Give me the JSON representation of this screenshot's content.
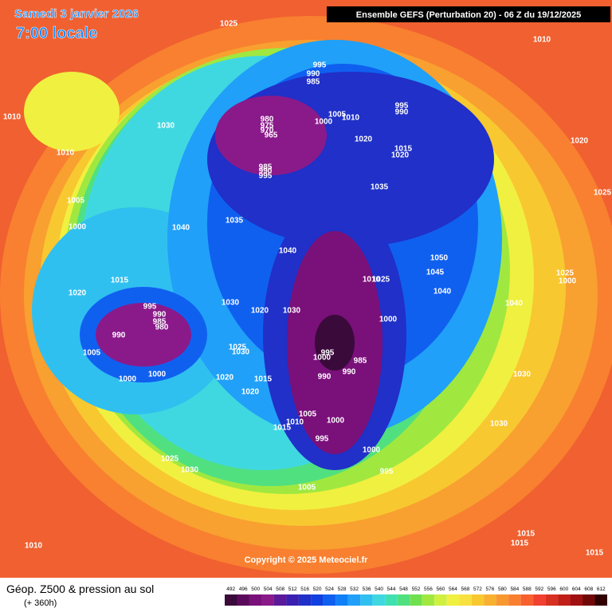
{
  "header": {
    "date": "Samedi 3 janvier 2026",
    "time": "7:00 locale",
    "run": "Ensemble GEFS  (Perturbation 20)  -  06 Z du 19/12/2025"
  },
  "copyright": "Copyright © 2025 Meteociel.fr",
  "footer": {
    "title": "Géop. Z500 & pression au sol",
    "range": "(+ 360h)"
  },
  "legend": {
    "values": [
      492,
      496,
      500,
      504,
      508,
      512,
      516,
      520,
      524,
      528,
      532,
      536,
      540,
      544,
      548,
      552,
      556,
      560,
      564,
      568,
      572,
      576,
      580,
      584,
      588,
      592,
      596,
      600,
      604,
      608,
      612
    ],
    "colors": [
      "#3a0a3a",
      "#5a0a5a",
      "#7a107a",
      "#8a1a8a",
      "#5a1a9a",
      "#3a20b0",
      "#2030c8",
      "#1040e0",
      "#1060f0",
      "#1080f8",
      "#20a0f8",
      "#30c0f0",
      "#40d8e0",
      "#40e0b0",
      "#50e080",
      "#70e050",
      "#a0e840",
      "#d0f040",
      "#f0f040",
      "#f8e040",
      "#f8c830",
      "#f8b030",
      "#f89830",
      "#f88030",
      "#f86030",
      "#f04030",
      "#d83020",
      "#c02018",
      "#a01010",
      "#700808",
      "#300000"
    ]
  },
  "isobars": [
    1025,
    1010,
    1030,
    1010,
    1010,
    1005,
    1000,
    1015,
    1020,
    995,
    990,
    985,
    980,
    990,
    1005,
    1000,
    1000,
    1020,
    1015,
    1020,
    1025,
    1030,
    1030,
    1020,
    1030,
    1040,
    1035,
    1040,
    1035,
    1015,
    1020,
    1020,
    1010,
    1005,
    1000,
    995,
    990,
    995,
    990,
    985,
    980,
    975,
    970,
    965,
    985,
    990,
    995,
    1050,
    1045,
    1040,
    1010,
    1025,
    1000,
    1020,
    1025,
    1025,
    1000,
    1040,
    1030,
    1030,
    995,
    1000,
    990,
    990,
    985,
    1005,
    1000,
    1010,
    1015,
    995,
    1000,
    995,
    1005,
    1025,
    1030,
    1010,
    1015,
    1015,
    1015
  ]
}
